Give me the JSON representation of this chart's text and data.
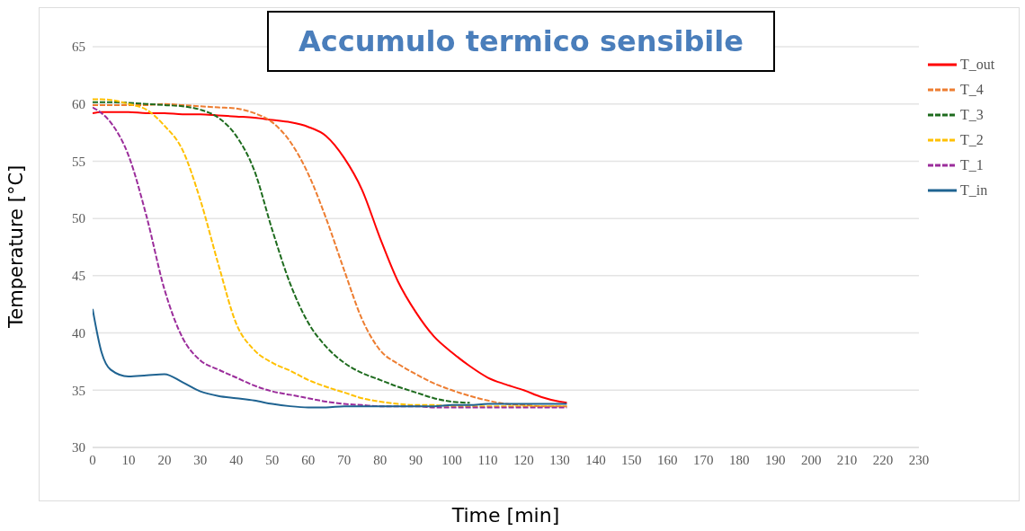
{
  "chart_data": {
    "type": "line",
    "title": "Accumulo termico sensibile",
    "xlabel": "Time [min]",
    "ylabel": "Temperature [°C]",
    "x": [
      0,
      2.5,
      5,
      10,
      15,
      20,
      25,
      30,
      35,
      40,
      45,
      50,
      55,
      60,
      65,
      70,
      75,
      80,
      85,
      90,
      95,
      100,
      105,
      110,
      115,
      120,
      125,
      130,
      132
    ],
    "series": [
      {
        "name": "T_out",
        "color": "#ff0000",
        "line_style": "solid",
        "values": [
          59.2,
          59.3,
          59.3,
          59.3,
          59.2,
          59.2,
          59.1,
          59.1,
          59.0,
          58.9,
          58.8,
          58.6,
          58.4,
          58.0,
          57.2,
          55.3,
          52.5,
          48.3,
          44.5,
          41.8,
          39.7,
          38.3,
          37.1,
          36.1,
          35.5,
          35.0,
          34.4,
          34.0,
          33.9
        ]
      },
      {
        "name": "T_4",
        "color": "#ed7d31",
        "line_style": "dashed",
        "values": [
          59.9,
          59.9,
          59.9,
          59.9,
          59.9,
          60.0,
          59.9,
          59.8,
          59.7,
          59.6,
          59.2,
          58.4,
          56.7,
          53.9,
          50.0,
          45.5,
          41.2,
          38.5,
          37.3,
          36.4,
          35.6,
          35.0,
          34.5,
          34.1,
          33.8,
          33.7,
          33.6,
          33.6,
          33.6
        ]
      },
      {
        "name": "T_3",
        "color": "#1e6b1e",
        "line_style": "dashed",
        "values": [
          60.15,
          60.15,
          60.15,
          60.1,
          60.0,
          59.9,
          59.8,
          59.5,
          58.8,
          57.2,
          54.2,
          49.0,
          44.3,
          40.9,
          38.8,
          37.4,
          36.5,
          35.9,
          35.3,
          34.8,
          34.3,
          34.0,
          33.9,
          null,
          null,
          null,
          null,
          null,
          null
        ]
      },
      {
        "name": "T_2",
        "color": "#ffc000",
        "line_style": "dashed",
        "values": [
          60.4,
          60.4,
          60.35,
          60.0,
          59.5,
          58.1,
          56.0,
          51.6,
          46.0,
          40.8,
          38.5,
          37.4,
          36.7,
          35.9,
          35.3,
          34.8,
          34.3,
          34.0,
          33.8,
          33.7,
          33.7,
          33.6,
          33.6,
          33.6,
          33.6,
          33.6,
          33.6,
          33.6,
          33.6
        ]
      },
      {
        "name": "T_1",
        "color": "#9b2d9b",
        "line_style": "dashed",
        "values": [
          59.7,
          59.2,
          58.4,
          55.5,
          50.2,
          43.8,
          39.6,
          37.6,
          36.8,
          36.1,
          35.4,
          34.9,
          34.6,
          34.3,
          34.0,
          33.8,
          33.7,
          33.6,
          33.6,
          33.6,
          33.5,
          33.5,
          33.5,
          33.5,
          33.5,
          33.5,
          33.5,
          33.5,
          33.5
        ]
      },
      {
        "name": "T_in",
        "color": "#1f6391",
        "line_style": "solid",
        "values": [
          42.1,
          38.3,
          36.8,
          36.2,
          36.3,
          36.4,
          35.7,
          34.9,
          34.5,
          34.3,
          34.1,
          33.8,
          33.6,
          33.5,
          33.5,
          33.6,
          33.6,
          33.6,
          33.6,
          33.6,
          33.6,
          33.7,
          33.7,
          33.8,
          33.8,
          33.8,
          33.8,
          33.8,
          33.8
        ]
      }
    ],
    "xlim": [
      0,
      230
    ],
    "xticks": [
      0,
      10,
      20,
      30,
      40,
      50,
      60,
      70,
      80,
      90,
      100,
      110,
      120,
      130,
      140,
      150,
      160,
      170,
      180,
      190,
      200,
      210,
      220,
      230
    ],
    "ylim": [
      30,
      65
    ],
    "yticks": [
      30,
      35,
      40,
      45,
      50,
      55,
      60,
      65
    ],
    "grid": "y",
    "legend": "top right",
    "marker": "none"
  }
}
